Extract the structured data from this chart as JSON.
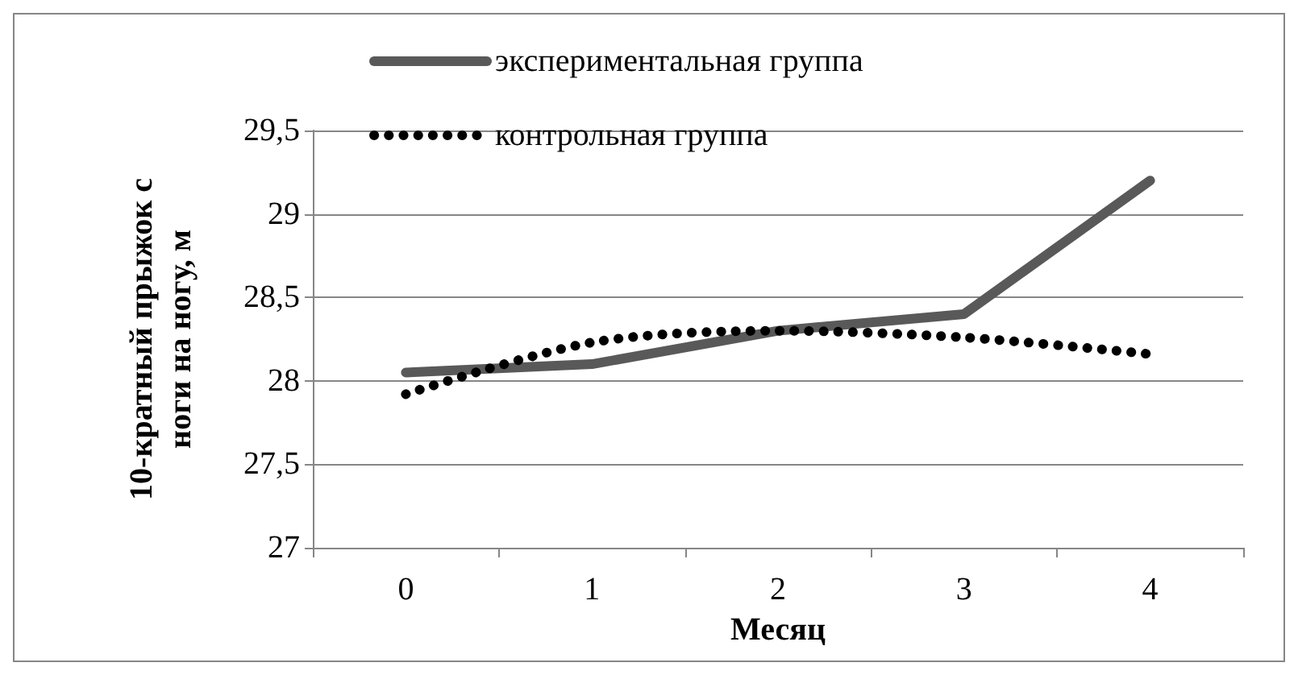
{
  "chart_data": {
    "type": "line",
    "xlabel": "Месяц",
    "ylabel": "10-кратный прыжок с\nноги на ногу, м",
    "categories": [
      "0",
      "1",
      "2",
      "3",
      "4"
    ],
    "series": [
      {
        "name": "экспериментальная группа",
        "color": "#595959",
        "line_style": "solid",
        "values": [
          28.05,
          28.1,
          28.3,
          28.4,
          29.2
        ]
      },
      {
        "name": "контрольная группа",
        "color": "#000000",
        "line_style": "dotted",
        "values": [
          27.92,
          28.23,
          28.3,
          28.26,
          28.16
        ]
      }
    ],
    "ylim": [
      27,
      29.5
    ],
    "yticks": [
      27,
      {
        "value": 27.5,
        "label": "27,5"
      },
      28,
      {
        "value": 28.5,
        "label": "28,5"
      },
      29,
      {
        "value": 29.5,
        "label": "29,5"
      }
    ],
    "grid": "y",
    "legend": "top left",
    "marker": "none"
  }
}
